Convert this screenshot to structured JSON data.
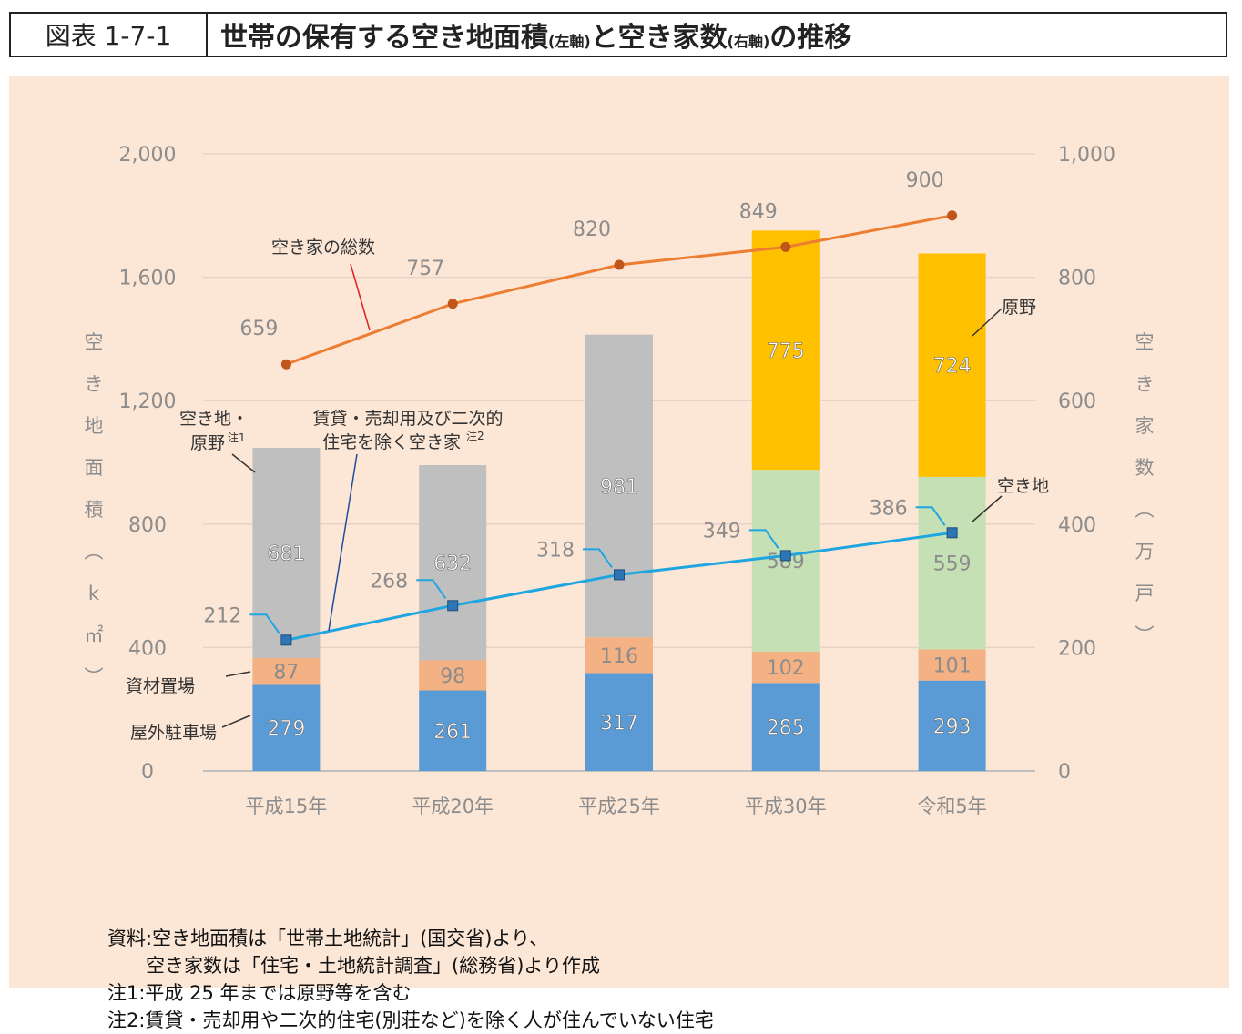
{
  "header": {
    "figure_label": "図表 1-7-1",
    "title_main": "世帯の保有する空き地面積",
    "title_left_axis_note": "(左軸)",
    "title_mid": "と空き家数",
    "title_right_axis_note": "(右軸)",
    "title_end": "の推移"
  },
  "chart_data": {
    "type": "bar",
    "categories": [
      "平成15年",
      "平成20年",
      "平成25年",
      "平成30年",
      "令和5年"
    ],
    "series": [
      {
        "name": "屋外駐車場",
        "axis": "left",
        "color": "#5b9bd5",
        "values": [
          279,
          261,
          317,
          285,
          293
        ]
      },
      {
        "name": "資材置場",
        "axis": "left",
        "color": "#f4b183",
        "values": [
          87,
          98,
          116,
          102,
          101
        ]
      },
      {
        "name": "空き地・原野注1",
        "axis": "left",
        "color": "#bfbfbf",
        "values": [
          681,
          632,
          981,
          null,
          null
        ]
      },
      {
        "name": "空き地",
        "axis": "left",
        "color": "#c5e0b4",
        "values": [
          null,
          null,
          null,
          589,
          559
        ]
      },
      {
        "name": "原野",
        "axis": "left",
        "color": "#ffc000",
        "values": [
          null,
          null,
          null,
          775,
          724
        ]
      }
    ],
    "lines": [
      {
        "name": "空き家の総数",
        "axis": "right",
        "color": "#ed7d31",
        "values": [
          659,
          757,
          820,
          849,
          900
        ]
      },
      {
        "name": "賃貸・売却用及び二次的住宅を除く空き家注2",
        "axis": "right",
        "color": "#1fa6e0",
        "values": [
          212,
          268,
          318,
          349,
          386
        ]
      }
    ],
    "left_axis": {
      "label": "空き地面積(k㎡)",
      "ylim": [
        0,
        2000
      ],
      "ticks": [
        "0",
        "400",
        "800",
        "1,200",
        "1,600",
        "2,000"
      ]
    },
    "right_axis": {
      "label": "空き家数(万戸)",
      "ylim": [
        0,
        1000
      ],
      "ticks": [
        "0",
        "200",
        "400",
        "600",
        "800",
        "1,000"
      ]
    },
    "grid": true,
    "annotations": {
      "total_vacant": "空き家の総数",
      "vacant_land_wild_line1": "空き地・",
      "vacant_land_wild_line2": "原野",
      "note1_mark": "注1",
      "excluding_line1": "賃貸・売却用及び二次的",
      "excluding_line2": "住宅を除く空き家",
      "note2_mark": "注2",
      "wild": "原野",
      "vacant_land": "空き地",
      "material_yard": "資材置場",
      "parking": "屋外駐車場"
    }
  },
  "notes": [
    "資料:空き地面積は「世帯土地統計」(国交省)より、",
    "　　空き家数は「住宅・土地統計調査」(総務省)より作成",
    "注1:平成 25 年までは原野等を含む",
    "注2:賃貸・売却用や二次的住宅(別荘など)を除く人が住んでいない住宅"
  ]
}
